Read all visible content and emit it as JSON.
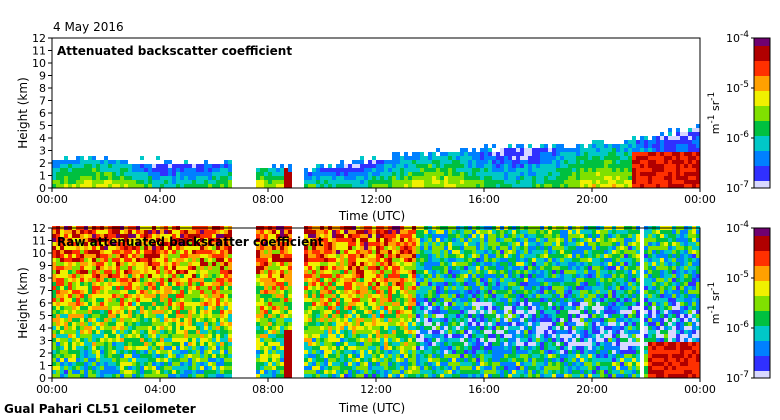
{
  "date": "4 May 2016",
  "footer": "Gual Pahari CL51 ceilometer",
  "chart_data": [
    {
      "type": "heatmap",
      "title": "Attenuated backscatter coefficient",
      "xlabel": "Time (UTC)",
      "ylabel": "Height (km)",
      "x_ticks": [
        "00:00",
        "04:00",
        "08:00",
        "12:00",
        "16:00",
        "20:00",
        "00:00"
      ],
      "ylim": [
        0,
        12
      ],
      "y_ticks": [
        0,
        1,
        2,
        3,
        4,
        5,
        6,
        7,
        8,
        9,
        10,
        11,
        12
      ],
      "colorbar": {
        "label_parts": [
          "m",
          "-1",
          " sr",
          "-1"
        ],
        "ticks": [
          {
            "base": "10",
            "exp": "-4"
          },
          {
            "base": "10",
            "exp": "-5"
          },
          {
            "base": "10",
            "exp": "-6"
          },
          {
            "base": "10",
            "exp": "-7"
          }
        ]
      },
      "data_gaps_hours": [
        [
          6.65,
          7.55
        ],
        [
          8.95,
          9.35
        ]
      ],
      "boundary_layer_top_km": {
        "hours": [
          0,
          6,
          9.5,
          12,
          16,
          20,
          22,
          24
        ],
        "height": [
          2.2,
          1.9,
          1.3,
          2.2,
          3.0,
          3.3,
          3.8,
          4.8
        ]
      }
    },
    {
      "type": "heatmap",
      "title": "Raw attenuated backscatter coefficient",
      "xlabel": "Time (UTC)",
      "ylabel": "Height (km)",
      "x_ticks": [
        "00:00",
        "04:00",
        "08:00",
        "12:00",
        "16:00",
        "20:00",
        "00:00"
      ],
      "ylim": [
        0,
        12
      ],
      "y_ticks": [
        0,
        1,
        2,
        3,
        4,
        5,
        6,
        7,
        8,
        9,
        10,
        11,
        12
      ],
      "colorbar": {
        "label_parts": [
          "m",
          "-1",
          " sr",
          "-1"
        ],
        "ticks": [
          {
            "base": "10",
            "exp": "-4"
          },
          {
            "base": "10",
            "exp": "-5"
          },
          {
            "base": "10",
            "exp": "-6"
          },
          {
            "base": "10",
            "exp": "-7"
          }
        ]
      },
      "data_gaps_hours": [
        [
          6.65,
          7.55
        ],
        [
          8.95,
          9.35
        ],
        [
          21.8,
          21.95
        ]
      ]
    }
  ]
}
